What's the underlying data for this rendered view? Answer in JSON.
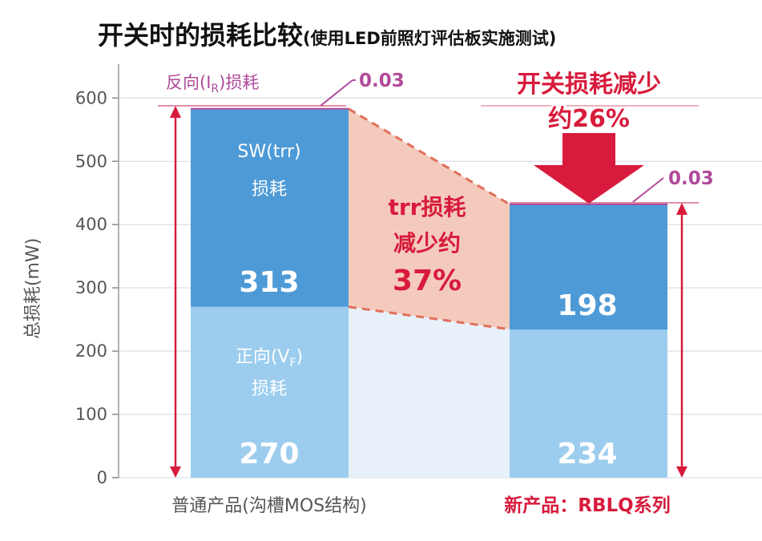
{
  "title": "开关时的损耗比较",
  "subtitle": "(使用LED前照灯评估板实施测试)",
  "chart_data": {
    "type": "bar",
    "stacked": true,
    "categories": [
      "普通产品(沟槽MOS结构)",
      "新产品：RBLQ系列"
    ],
    "series": [
      {
        "name": "正向(VF)损耗",
        "values": [
          270,
          234
        ],
        "color": "#9ccdee"
      },
      {
        "name": "SW(trr)损耗",
        "values": [
          313,
          198
        ],
        "color": "#4e9ad6"
      },
      {
        "name": "反向(IR)损耗",
        "values": [
          0.03,
          0.03
        ],
        "color": "#b04a9a"
      }
    ],
    "ylabel": "总损耗(mW)",
    "ylim": [
      0,
      600
    ],
    "yticks": [
      "0",
      "100",
      "200",
      "300",
      "400",
      "500",
      "600"
    ],
    "grid": true
  },
  "labels": {
    "sw_line1": "SW(trr)",
    "sw_line2": "损耗",
    "vf_line1_pre": "正向(V",
    "vf_sub": "F",
    "vf_line1_post": ")",
    "vf_line2": "损耗",
    "ir_pre": "反向(I",
    "ir_sub": "R",
    "ir_post": ")损耗",
    "ir_value_left": "0.03",
    "ir_value_right": "0.03",
    "val_sw_old": "313",
    "val_vf_old": "270",
    "val_sw_new": "198",
    "val_vf_new": "234"
  },
  "annotations": {
    "trr_line1": "trr损耗",
    "trr_line2": "减少约",
    "trr_line3": "37%",
    "total_line1": "开关损耗减少",
    "total_line2": "约26%"
  }
}
